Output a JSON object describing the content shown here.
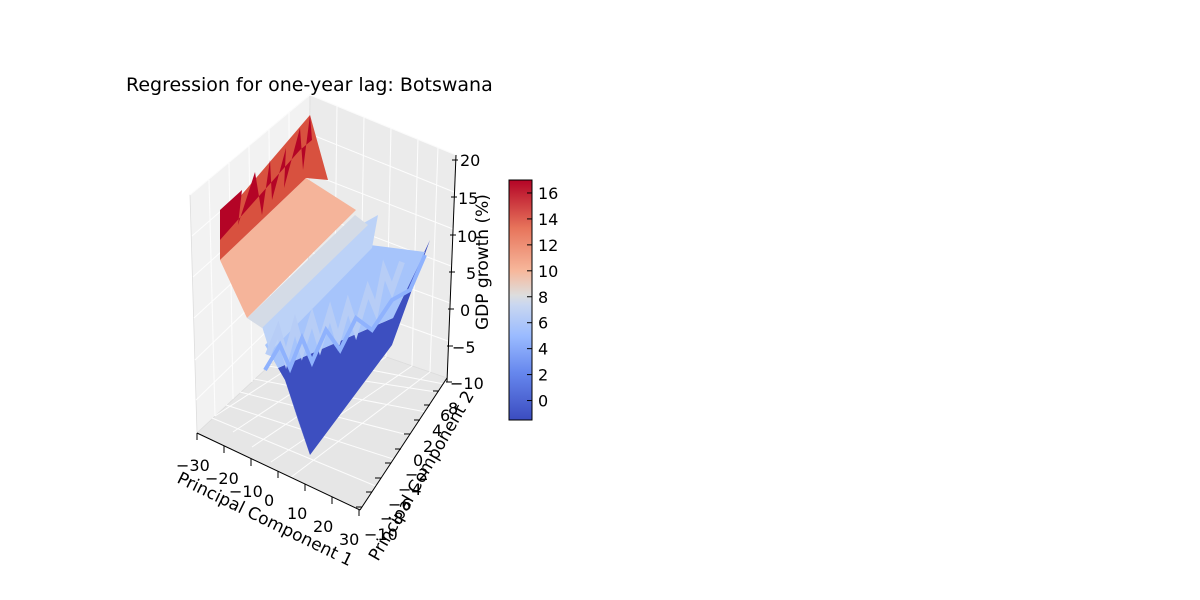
{
  "chart_data": {
    "type": "surface3d",
    "title": "Regression for one-year lag: Botswana",
    "xlabel": "Principal Component 1",
    "ylabel": "Principal Component 2",
    "zlabel": "GDP growth (%)",
    "x_ticks": [
      "−30",
      "−20",
      "−10",
      "0",
      "10",
      "20",
      "30"
    ],
    "y_ticks": [
      "−10",
      "−8",
      "−6",
      "−4",
      "−2",
      "0",
      "2",
      "4",
      "6",
      "8"
    ],
    "z_ticks": [
      "−10",
      "−5",
      "0",
      "5",
      "10",
      "15",
      "20"
    ],
    "xlim": [
      -30,
      30
    ],
    "ylim": [
      -10,
      8
    ],
    "zlim": [
      -10,
      20
    ],
    "grid": true,
    "colormap": "coolwarm",
    "colorbar": {
      "ticks": [
        "0",
        "2",
        "4",
        "6",
        "8",
        "10",
        "12",
        "14",
        "16"
      ],
      "min": -1.5,
      "max": 17,
      "colors": [
        "#3b4cc0",
        "#6788ee",
        "#9abbff",
        "#c9d7f0",
        "#dddddd",
        "#f7b89c",
        "#e7745b",
        "#b40426"
      ]
    },
    "surface_bands": [
      {
        "name": "top-red",
        "z": 17,
        "color": "#b40426"
      },
      {
        "name": "upper-red",
        "z": 14,
        "color": "#d8513f"
      },
      {
        "name": "salmon",
        "z": 10,
        "color": "#f5b49a"
      },
      {
        "name": "light-grey",
        "z": 7,
        "color": "#d4dbe6"
      },
      {
        "name": "light-blue",
        "z": 5,
        "color": "#b8cff8"
      },
      {
        "name": "mid-blue",
        "z": 3,
        "color": "#9ebeff"
      },
      {
        "name": "dark-blue",
        "z": -1,
        "color": "#3d4fc0"
      }
    ]
  }
}
